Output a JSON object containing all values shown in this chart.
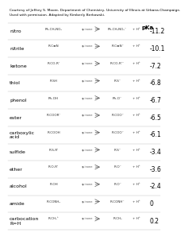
{
  "title_line1": "Courtesy of Jeffrey S. Moore, Department of Chemistry, University of Illinois at Urbana-Champaign.",
  "title_line2": "Used with permission. Adapted by Kimberly Berkowski.",
  "header_pka": "pKa",
  "rows": [
    {
      "label": "nitro",
      "pka": "-11.2"
    },
    {
      "label": "nitrile",
      "pka": "-10.1"
    },
    {
      "label": "ketone",
      "pka": "-7.2"
    },
    {
      "label": "thiol",
      "pka": "-6.8"
    },
    {
      "label": "phenol",
      "pka": "-6.7"
    },
    {
      "label": "ester",
      "pka": "-6.5"
    },
    {
      "label": "carboxylic\nacid",
      "pka": "-6.1"
    },
    {
      "label": "sulfide",
      "pka": "-3.4"
    },
    {
      "label": "ether",
      "pka": "-3.6"
    },
    {
      "label": "alcohol",
      "pka": "-2.4"
    },
    {
      "label": "amide",
      "pka": "0"
    },
    {
      "label": "carbocation\nR=H",
      "pka": "0.2"
    }
  ],
  "bg_color": "#ffffff",
  "text_color": "#000000",
  "font_size_header": 5,
  "font_size_label": 4.5,
  "font_size_pka": 5.5,
  "font_size_title": 3.2
}
